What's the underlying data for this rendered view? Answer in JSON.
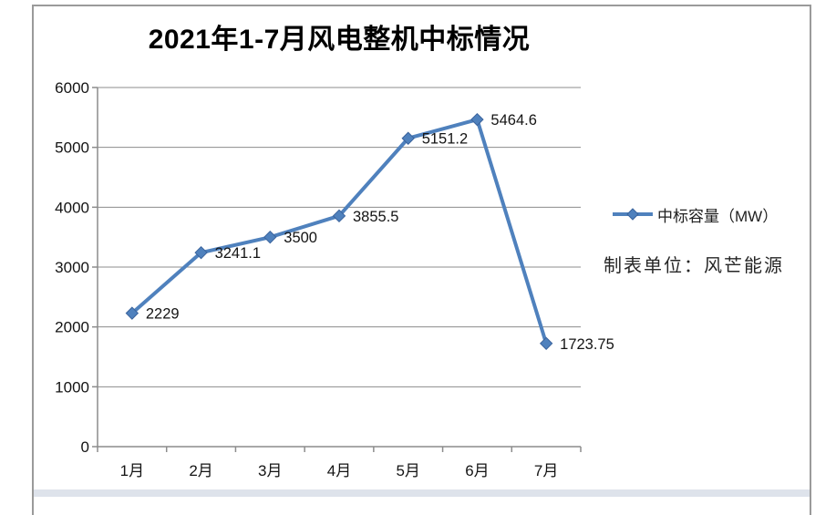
{
  "chart_data": {
    "type": "line",
    "title": "2021年1-7月风电整机中标情况",
    "categories": [
      "1月",
      "2月",
      "3月",
      "4月",
      "5月",
      "6月",
      "7月"
    ],
    "series": [
      {
        "name": "中标容量（MW）",
        "values": [
          2229,
          3241.1,
          3500,
          3855.5,
          5151.2,
          5464.6,
          1723.75
        ],
        "data_labels": [
          "2229",
          "3241.1",
          "3500",
          "3855.5",
          "5151.2",
          "5464.6",
          "1723.75"
        ]
      }
    ],
    "y_ticks": [
      0,
      1000,
      2000,
      3000,
      4000,
      5000,
      6000
    ],
    "ylim": [
      0,
      6000
    ],
    "xlabel": "",
    "ylabel": "",
    "grid": true,
    "legend_position": "right",
    "marker": "diamond",
    "line_color": "#4f81bd",
    "marker_edge_color": "#3a639c",
    "grid_color": "#8c8c8c",
    "axis_color": "#8c8c8c"
  },
  "legend": {
    "label": "中标容量（MW）"
  },
  "note": {
    "text": "制表单位：风芒能源"
  },
  "frame": {
    "border_color": "#9a9a9a",
    "bottom_strip_color": "#dee3eb"
  }
}
